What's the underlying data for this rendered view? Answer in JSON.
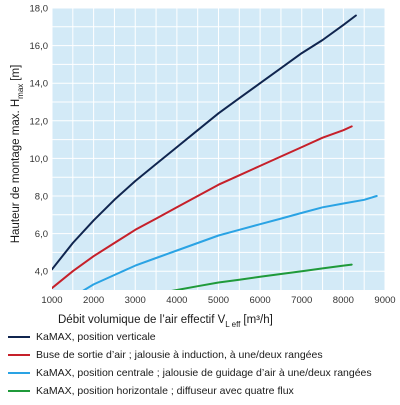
{
  "chart_data": {
    "type": "line",
    "xlabel_main": "Débit volumique de l’air effectif V",
    "xlabel_sub": "L eff",
    "xlabel_unit": "[m³/h]",
    "ylabel_main": "Hauteur de montage max. H",
    "ylabel_sub": "max",
    "ylabel_unit": "[m]",
    "xlim": [
      1000,
      9000
    ],
    "ylim": [
      3.0,
      18.0
    ],
    "x_ticks": [
      1000,
      2000,
      3000,
      4000,
      5000,
      6000,
      7000,
      8000,
      9000
    ],
    "x_tick_labels": [
      "1000",
      "2000",
      "3000",
      "4000",
      "5000",
      "6000",
      "7000",
      "8000",
      "9000"
    ],
    "y_ticks": [
      4.0,
      6.0,
      8.0,
      10.0,
      12.0,
      14.0,
      16.0,
      18.0
    ],
    "y_tick_labels": [
      "4,0",
      "6,0",
      "8,0",
      "10,0",
      "12,0",
      "14,0",
      "16,0",
      "18,0"
    ],
    "grid": true,
    "plot_background": "#d3eaf7",
    "grid_color": "#ffffff",
    "legend_position": "bottom",
    "series": [
      {
        "name": "KaMAX, position verticale",
        "color": "#10254f",
        "x": [
          1000,
          1500,
          2000,
          2500,
          3000,
          3500,
          4000,
          4500,
          5000,
          5500,
          6000,
          6500,
          7000,
          7500,
          8000,
          8300
        ],
        "y": [
          4.1,
          5.5,
          6.7,
          7.8,
          8.8,
          9.7,
          10.6,
          11.5,
          12.4,
          13.2,
          14.0,
          14.8,
          15.6,
          16.3,
          17.1,
          17.6
        ]
      },
      {
        "name": "Buse de sortie d’air ; jalousie à induction, à une/deux rangées",
        "color": "#c6202a",
        "x": [
          1000,
          1500,
          2000,
          2500,
          3000,
          3500,
          4000,
          4500,
          5000,
          5500,
          6000,
          6500,
          7000,
          7500,
          8000,
          8200
        ],
        "y": [
          3.1,
          4.0,
          4.8,
          5.5,
          6.2,
          6.8,
          7.4,
          8.0,
          8.6,
          9.1,
          9.6,
          10.1,
          10.6,
          11.1,
          11.5,
          11.7
        ]
      },
      {
        "name": "KaMAX, position centrale ; jalousie de guidage d’air à une/deux rangées",
        "color": "#2aa3e4",
        "x": [
          1400,
          2000,
          2500,
          3000,
          3500,
          4000,
          4500,
          5000,
          5500,
          6000,
          6500,
          7000,
          7500,
          8000,
          8500,
          8800
        ],
        "y": [
          2.5,
          3.3,
          3.8,
          4.3,
          4.7,
          5.1,
          5.5,
          5.9,
          6.2,
          6.5,
          6.8,
          7.1,
          7.4,
          7.6,
          7.8,
          8.0
        ]
      },
      {
        "name": "KaMAX, position horizontale ; diffuseur avec quatre flux",
        "color": "#1f9a3a",
        "x": [
          2900,
          3500,
          4000,
          4500,
          5000,
          5500,
          6000,
          6500,
          7000,
          7500,
          8000,
          8200
        ],
        "y": [
          2.5,
          2.8,
          3.0,
          3.2,
          3.4,
          3.55,
          3.7,
          3.85,
          4.0,
          4.15,
          4.3,
          4.35
        ]
      }
    ]
  }
}
